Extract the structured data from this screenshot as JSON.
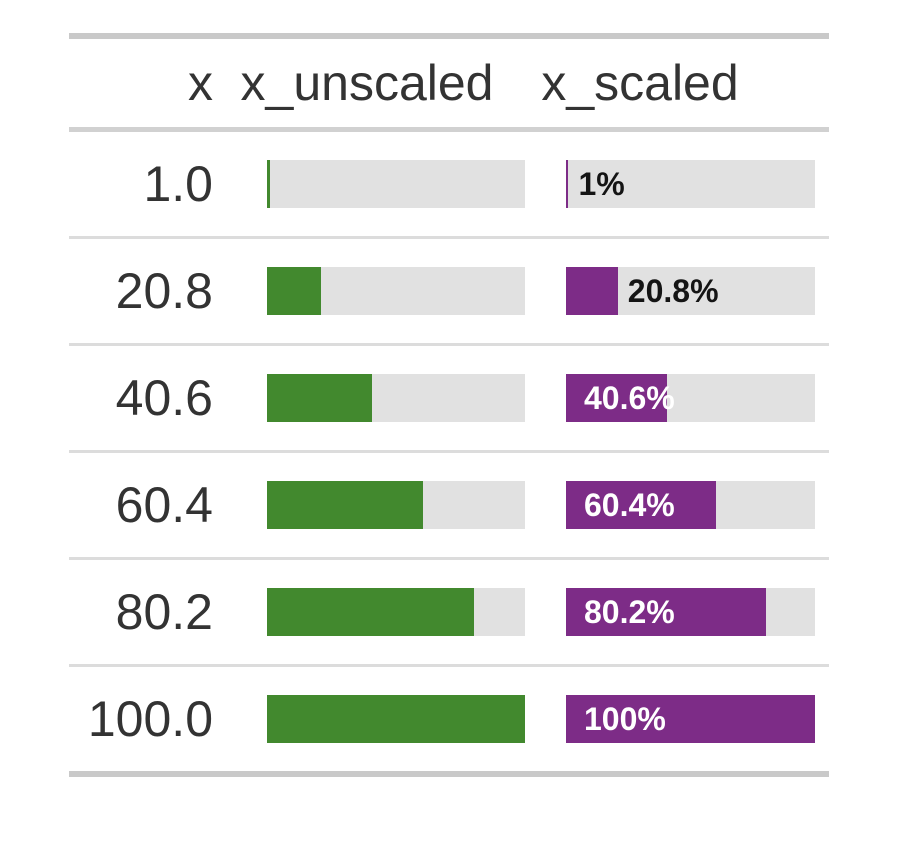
{
  "table": {
    "columns": [
      {
        "label": "x"
      },
      {
        "label": "x_unscaled"
      },
      {
        "label": "x_scaled"
      }
    ],
    "colors": {
      "unscaled_fill": "#42892E",
      "scaled_fill": "#7D2C87",
      "track_background": "#E1E1E1",
      "text": "#333333",
      "label_outside_text": "#141414",
      "label_inside_text": "#FFFFFF"
    },
    "rows": [
      {
        "x": "1.0",
        "unscaled_pct": 1,
        "scaled_pct": 1,
        "label_in": "",
        "label_out": "1%"
      },
      {
        "x": "20.8",
        "unscaled_pct": 20.8,
        "scaled_pct": 20.8,
        "label_in": "",
        "label_out": "20.8%"
      },
      {
        "x": "40.6",
        "unscaled_pct": 40.6,
        "scaled_pct": 40.6,
        "label_in": "40.6%",
        "label_out": ""
      },
      {
        "x": "60.4",
        "unscaled_pct": 60.4,
        "scaled_pct": 60.4,
        "label_in": "60.4%",
        "label_out": ""
      },
      {
        "x": "80.2",
        "unscaled_pct": 80.2,
        "scaled_pct": 80.2,
        "label_in": "80.2%",
        "label_out": ""
      },
      {
        "x": "100.0",
        "unscaled_pct": 100,
        "scaled_pct": 100,
        "label_in": "100%",
        "label_out": ""
      }
    ]
  },
  "chart_data": {
    "type": "bar",
    "title": "",
    "categories": [
      "1.0",
      "20.8",
      "40.6",
      "60.4",
      "80.2",
      "100.0"
    ],
    "series": [
      {
        "name": "x_unscaled",
        "values": [
          1,
          20.8,
          40.6,
          60.4,
          80.2,
          100
        ]
      },
      {
        "name": "x_scaled",
        "values": [
          1,
          20.8,
          40.6,
          60.4,
          80.2,
          100
        ],
        "labels": [
          "1%",
          "20.8%",
          "40.6%",
          "60.4%",
          "80.2%",
          "100%"
        ]
      }
    ],
    "xlabel": "",
    "ylabel": "",
    "xlim": [
      0,
      100
    ],
    "grid": false,
    "legend_position": "none"
  }
}
